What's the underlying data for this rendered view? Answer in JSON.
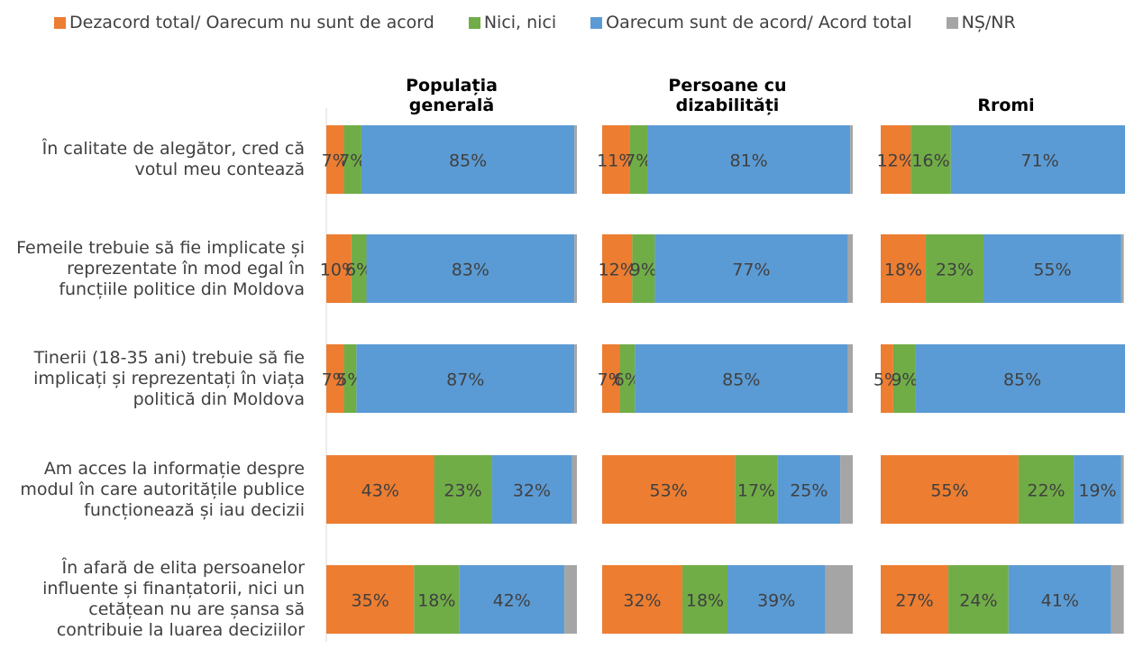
{
  "chart_data": {
    "type": "stacked_bar",
    "categories": [
      "În calitate de alegător, cred că votul meu contează",
      "Femeile trebuie să fie implicate și reprezentate în mod egal în funcțiile politice din Moldova",
      "Tinerii (18-35 ani) trebuie să fie implicați și reprezentați în viața politică din Moldova",
      "Am acces la informație despre modul în care autoritățile publice funcționează și iau decizii",
      "În afară de elita persoanelor influente și finanțatorii, nici un cetățean nu are șansa să contribuie la luarea deciziilor"
    ],
    "series": [
      {
        "name": "Dezacord total/ Oarecum nu sunt de acord",
        "color": "#ed7d31"
      },
      {
        "name": "Nici, nici",
        "color": "#70ad47"
      },
      {
        "name": "Oarecum sunt de acord/ Acord total",
        "color": "#5b9bd5"
      },
      {
        "name": "NȘ/NR",
        "color": "#a5a5a5"
      }
    ],
    "xlim": [
      0,
      100
    ],
    "panels": [
      {
        "title": "Populația generală",
        "values": [
          [
            7,
            10,
            7,
            43,
            35
          ],
          [
            7,
            6,
            5,
            23,
            18
          ],
          [
            85,
            83,
            87,
            32,
            42
          ],
          [
            1,
            1,
            1,
            2,
            5
          ]
        ],
        "value_labels": [
          [
            "7%",
            "10%",
            "7%",
            "43%",
            "35%"
          ],
          [
            "7%",
            "6%",
            "5%",
            "23%",
            "18%"
          ],
          [
            "85%",
            "83%",
            "87%",
            "32%",
            "42%"
          ]
        ]
      },
      {
        "title": "Persoane cu dizabilități",
        "values": [
          [
            11,
            12,
            7,
            53,
            32
          ],
          [
            7,
            9,
            6,
            17,
            18
          ],
          [
            81,
            77,
            85,
            25,
            39
          ],
          [
            1,
            2,
            2,
            5,
            11
          ]
        ],
        "value_labels": [
          [
            "11%",
            "12%",
            "7%",
            "53%",
            "32%"
          ],
          [
            "7%",
            "9%",
            "6%",
            "17%",
            "18%"
          ],
          [
            "81%",
            "77%",
            "85%",
            "25%",
            "39%"
          ]
        ]
      },
      {
        "title": "Rromi",
        "values": [
          [
            12,
            18,
            5,
            55,
            27
          ],
          [
            16,
            23,
            9,
            22,
            24
          ],
          [
            71,
            55,
            85,
            19,
            41
          ],
          [
            1,
            1,
            1,
            1,
            5
          ]
        ],
        "value_labels": [
          [
            "12%",
            "18%",
            "5%",
            "55%",
            "27%"
          ],
          [
            "16%",
            "23%",
            "9%",
            "22%",
            "24%"
          ],
          [
            "71%",
            "55%",
            "85%",
            "19%",
            "41%"
          ]
        ]
      }
    ]
  }
}
